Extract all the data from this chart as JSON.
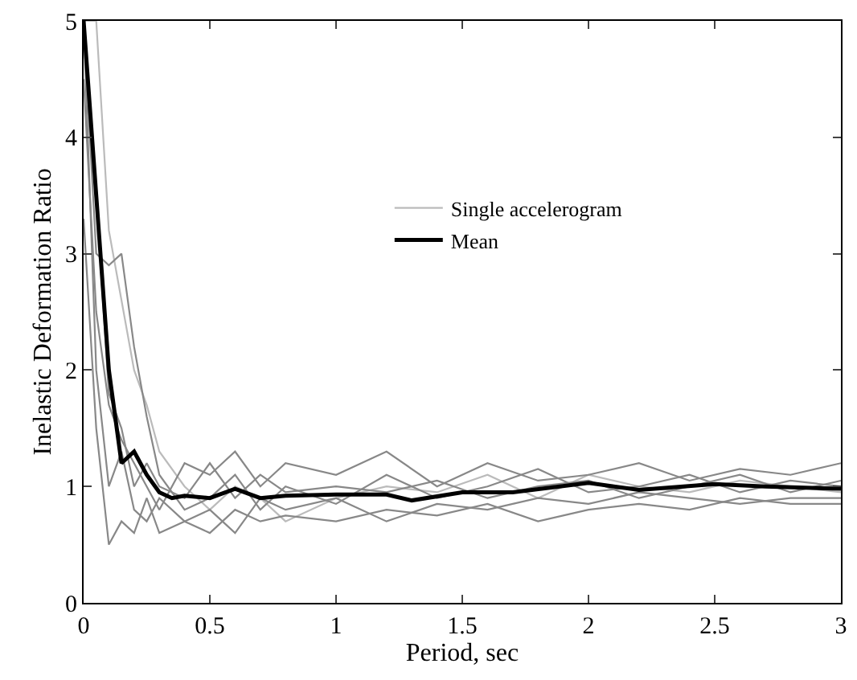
{
  "chart_data": {
    "type": "line",
    "xlabel": "Period, sec",
    "ylabel": "Inelastic Deformation Ratio",
    "xlim": [
      0,
      3
    ],
    "ylim": [
      0,
      5
    ],
    "xticks": [
      0,
      0.5,
      1,
      1.5,
      2,
      2.5,
      3
    ],
    "yticks": [
      0,
      1,
      2,
      3,
      4,
      5
    ],
    "legend": "right",
    "marker": "none",
    "line_style": "solid",
    "series": [
      {
        "name": "Single accelerogram",
        "color": "#bbbbbb",
        "x": [
          0,
          0.05,
          0.1,
          0.15,
          0.2,
          0.25,
          0.3,
          0.4,
          0.5,
          0.6,
          0.7,
          0.8,
          1.0,
          1.2,
          1.4,
          1.6,
          1.8,
          2.0,
          2.2,
          2.4,
          2.6,
          2.8,
          3.0
        ],
        "values": [
          5,
          5,
          3.2,
          2.6,
          2.0,
          1.7,
          1.3,
          1.0,
          0.8,
          1.0,
          0.9,
          0.7,
          0.9,
          1.0,
          0.95,
          1.1,
          0.9,
          1.1,
          1.0,
          0.95,
          1.05,
          1.0,
          0.95
        ]
      },
      {
        "color": "#888888",
        "x": [
          0,
          0.05,
          0.1,
          0.15,
          0.2,
          0.25,
          0.3,
          0.4,
          0.5,
          0.6,
          0.7,
          0.8,
          1.0,
          1.2,
          1.4,
          1.6,
          1.8,
          2.0,
          2.2,
          2.4,
          2.6,
          2.8,
          3.0
        ],
        "values": [
          5,
          3.0,
          2.9,
          3.0,
          2.2,
          1.6,
          1.1,
          0.8,
          0.9,
          1.1,
          0.8,
          1.0,
          0.85,
          1.1,
          0.9,
          1.0,
          1.15,
          0.95,
          1.0,
          1.1,
          0.95,
          1.05,
          1.0
        ]
      },
      {
        "color": "#888888",
        "x": [
          0,
          0.05,
          0.1,
          0.15,
          0.2,
          0.25,
          0.3,
          0.4,
          0.5,
          0.6,
          0.7,
          0.8,
          1.0,
          1.2,
          1.4,
          1.6,
          1.8,
          2.0,
          2.2,
          2.4,
          2.6,
          2.8,
          3.0
        ],
        "values": [
          3.3,
          1.5,
          0.5,
          0.7,
          0.6,
          0.9,
          0.6,
          0.7,
          0.6,
          0.8,
          0.7,
          0.75,
          0.7,
          0.8,
          0.75,
          0.85,
          0.7,
          0.8,
          0.85,
          0.8,
          0.9,
          0.85,
          0.85
        ]
      },
      {
        "color": "#888888",
        "x": [
          0,
          0.05,
          0.1,
          0.15,
          0.2,
          0.25,
          0.3,
          0.4,
          0.5,
          0.6,
          0.7,
          0.8,
          1.0,
          1.2,
          1.4,
          1.6,
          1.8,
          2.0,
          2.2,
          2.4,
          2.6,
          2.8,
          3.0
        ],
        "values": [
          4.5,
          2.5,
          1.7,
          1.4,
          1.2,
          1.0,
          0.8,
          1.2,
          1.1,
          1.3,
          1.0,
          1.2,
          1.1,
          1.3,
          1.0,
          1.2,
          1.05,
          1.1,
          1.2,
          1.05,
          1.15,
          1.1,
          1.2
        ]
      },
      {
        "color": "#888888",
        "x": [
          0,
          0.05,
          0.1,
          0.15,
          0.2,
          0.25,
          0.3,
          0.4,
          0.5,
          0.6,
          0.7,
          0.8,
          1.0,
          1.2,
          1.4,
          1.6,
          1.8,
          2.0,
          2.2,
          2.4,
          2.6,
          2.8,
          3.0
        ],
        "values": [
          5,
          2.0,
          1.0,
          1.3,
          0.8,
          0.7,
          0.9,
          0.7,
          0.8,
          0.6,
          0.9,
          0.8,
          0.9,
          0.7,
          0.85,
          0.8,
          0.9,
          0.85,
          0.95,
          0.9,
          0.85,
          0.9,
          0.9
        ]
      },
      {
        "color": "#888888",
        "x": [
          0,
          0.05,
          0.1,
          0.15,
          0.2,
          0.25,
          0.3,
          0.4,
          0.5,
          0.6,
          0.7,
          0.8,
          1.0,
          1.2,
          1.4,
          1.6,
          1.8,
          2.0,
          2.2,
          2.4,
          2.6,
          2.8,
          3.0
        ],
        "values": [
          5,
          3.5,
          1.8,
          1.5,
          1.0,
          1.2,
          1.0,
          0.9,
          1.2,
          0.9,
          1.1,
          0.95,
          1.0,
          0.95,
          1.05,
          0.9,
          1.0,
          1.05,
          0.9,
          1.0,
          1.1,
          0.95,
          1.05
        ]
      },
      {
        "name": "Mean",
        "color": "#000000",
        "x": [
          0,
          0.05,
          0.1,
          0.15,
          0.2,
          0.25,
          0.3,
          0.35,
          0.4,
          0.5,
          0.6,
          0.7,
          0.8,
          1.0,
          1.2,
          1.3,
          1.5,
          1.7,
          2.0,
          2.2,
          2.5,
          2.7,
          3.0
        ],
        "values": [
          5,
          3.5,
          2.0,
          1.2,
          1.3,
          1.1,
          0.95,
          0.9,
          0.92,
          0.9,
          0.98,
          0.9,
          0.92,
          0.93,
          0.93,
          0.88,
          0.95,
          0.95,
          1.03,
          0.97,
          1.02,
          1.0,
          0.98
        ]
      }
    ]
  }
}
